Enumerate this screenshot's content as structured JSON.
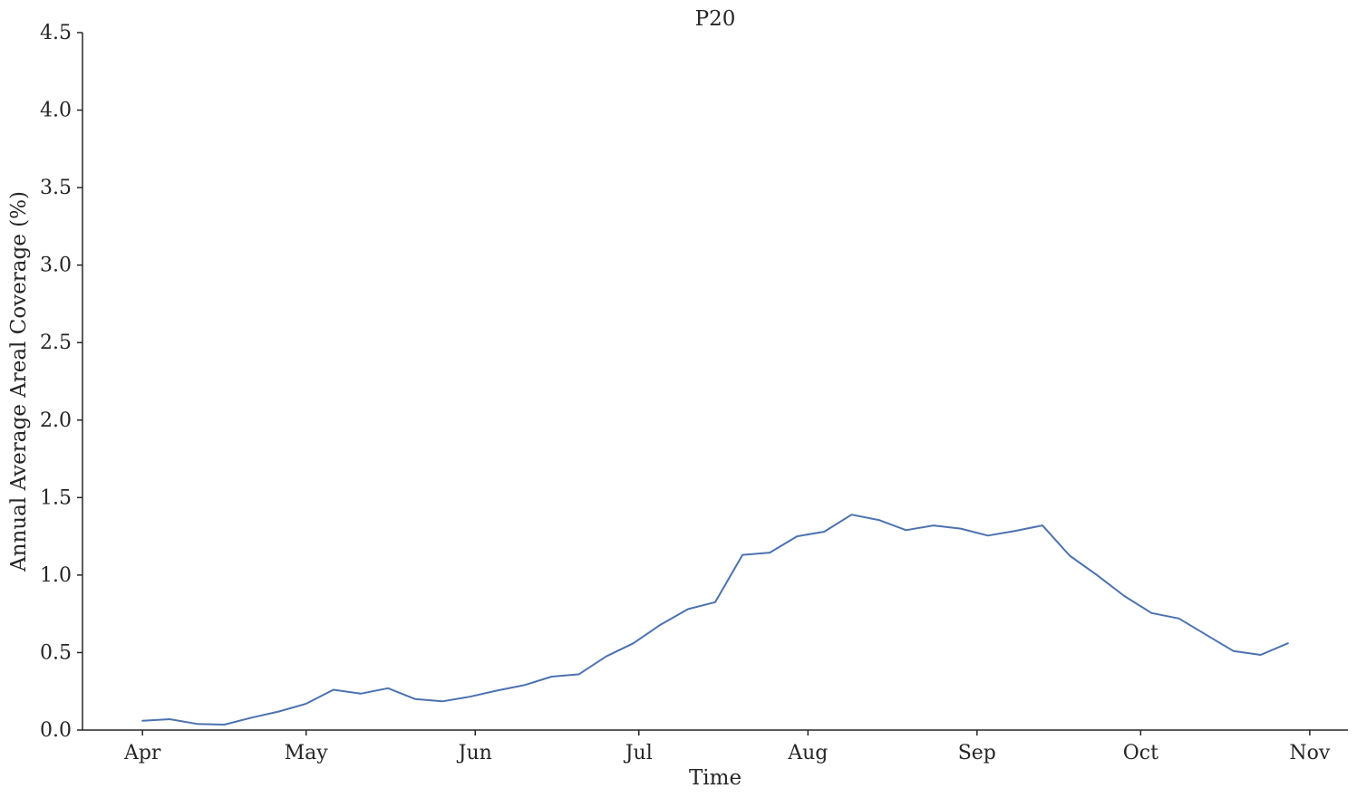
{
  "chart_data": {
    "type": "line",
    "title": "P20",
    "xlabel": "Time",
    "ylabel": "Annual Average Areal Coverage (%)",
    "ylim": [
      0,
      4.5
    ],
    "yticks": [
      "0.0",
      "0.5",
      "1.0",
      "1.5",
      "2.0",
      "2.5",
      "3.0",
      "3.5",
      "4.0",
      "4.5"
    ],
    "xlim": [
      "2000-03-21",
      "2000-11-08"
    ],
    "xticks": [
      {
        "label": "Apr",
        "date": "2000-04-01"
      },
      {
        "label": "May",
        "date": "2000-05-01"
      },
      {
        "label": "Jun",
        "date": "2000-06-01"
      },
      {
        "label": "Jul",
        "date": "2000-07-01"
      },
      {
        "label": "Aug",
        "date": "2000-08-01"
      },
      {
        "label": "Sep",
        "date": "2000-09-01"
      },
      {
        "label": "Oct",
        "date": "2000-10-01"
      },
      {
        "label": "Nov",
        "date": "2000-11-01"
      }
    ],
    "grid": false,
    "series": [
      {
        "color": "#4c72b0",
        "x": [
          "2000-04-01",
          "2000-04-06",
          "2000-04-11",
          "2000-04-16",
          "2000-04-21",
          "2000-04-26",
          "2000-05-01",
          "2000-05-06",
          "2000-05-11",
          "2000-05-16",
          "2000-05-21",
          "2000-05-26",
          "2000-05-31",
          "2000-06-05",
          "2000-06-10",
          "2000-06-15",
          "2000-06-20",
          "2000-06-25",
          "2000-06-30",
          "2000-07-05",
          "2000-07-10",
          "2000-07-15",
          "2000-07-20",
          "2000-07-25",
          "2000-07-30",
          "2000-08-04",
          "2000-08-09",
          "2000-08-14",
          "2000-08-19",
          "2000-08-24",
          "2000-08-29",
          "2000-09-03",
          "2000-09-08",
          "2000-09-13",
          "2000-09-18",
          "2000-09-23",
          "2000-09-28",
          "2000-10-03",
          "2000-10-08",
          "2000-10-13",
          "2000-10-18",
          "2000-10-23",
          "2000-10-28"
        ],
        "y": [
          0.06,
          0.07,
          0.04,
          0.035,
          0.08,
          0.12,
          0.17,
          0.26,
          0.235,
          0.27,
          0.2,
          0.185,
          0.215,
          0.255,
          0.29,
          0.345,
          0.36,
          0.475,
          0.56,
          0.68,
          0.78,
          0.825,
          1.13,
          1.145,
          1.25,
          1.28,
          1.39,
          1.355,
          1.29,
          1.32,
          1.3,
          1.255,
          1.285,
          1.32,
          1.125,
          1.0,
          0.865,
          0.755,
          0.72,
          0.615,
          0.51,
          0.485,
          0.56
        ]
      }
    ]
  }
}
